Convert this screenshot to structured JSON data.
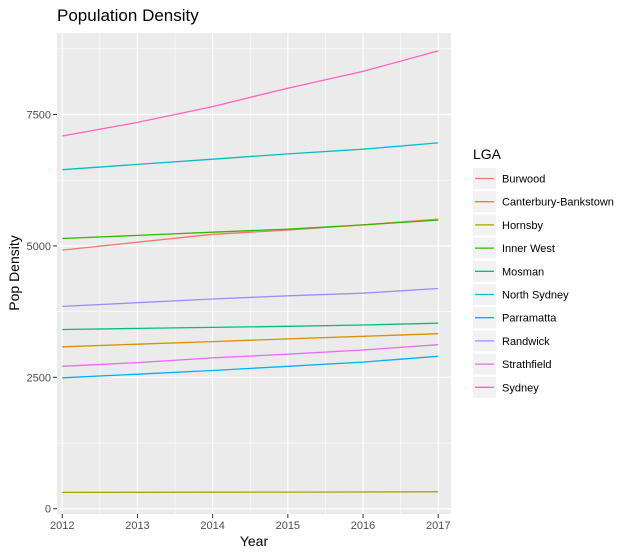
{
  "chart_data": {
    "type": "line",
    "title": "Population Density",
    "xlabel": "Year",
    "ylabel": "Pop Density",
    "x": [
      2012,
      2013,
      2014,
      2015,
      2016,
      2017
    ],
    "xlim": [
      2011.93,
      2017.17
    ],
    "ylim": [
      -100,
      9050
    ],
    "x_ticks": [
      "2012",
      "2013",
      "2014",
      "2015",
      "2016",
      "2017"
    ],
    "y_ticks": [
      0,
      2500,
      5000,
      7500
    ],
    "grid": true,
    "legend_title": "LGA",
    "legend_position": "right",
    "series": [
      {
        "name": "Burwood",
        "color": "#F8766D",
        "values": [
          4920,
          5070,
          5220,
          5300,
          5400,
          5510
        ]
      },
      {
        "name": "Canterbury-Bankstown",
        "color": "#D89000",
        "values": [
          3080,
          3130,
          3180,
          3230,
          3280,
          3330
        ]
      },
      {
        "name": "Hornsby",
        "color": "#A3A500",
        "values": [
          310,
          312,
          314,
          316,
          318,
          322
        ]
      },
      {
        "name": "Inner West",
        "color": "#39B600",
        "values": [
          5140,
          5200,
          5260,
          5320,
          5400,
          5490
        ]
      },
      {
        "name": "Mosman",
        "color": "#00BF7D",
        "values": [
          3410,
          3430,
          3450,
          3470,
          3495,
          3530
        ]
      },
      {
        "name": "North Sydney",
        "color": "#00BFC4",
        "values": [
          6450,
          6550,
          6650,
          6750,
          6840,
          6960
        ]
      },
      {
        "name": "Parramatta",
        "color": "#00B0F6",
        "values": [
          2490,
          2560,
          2630,
          2710,
          2790,
          2900
        ]
      },
      {
        "name": "Randwick",
        "color": "#9590FF",
        "values": [
          3850,
          3920,
          3990,
          4050,
          4100,
          4190
        ]
      },
      {
        "name": "Strathfield",
        "color": "#E76BF3",
        "values": [
          2710,
          2780,
          2870,
          2940,
          3020,
          3120
        ]
      },
      {
        "name": "Sydney",
        "color": "#FF62BC",
        "values": [
          7090,
          7350,
          7650,
          8000,
          8320,
          8710
        ]
      }
    ]
  }
}
